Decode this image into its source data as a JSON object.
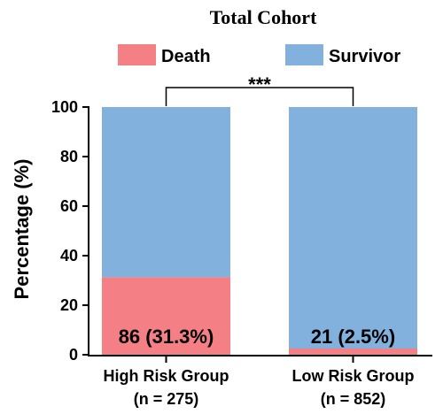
{
  "chart_data": {
    "type": "bar",
    "stacked": true,
    "title": "Total Cohort",
    "ylabel": "Percentage (%)",
    "xlabel": "",
    "ylim": [
      0,
      100
    ],
    "yticks": [
      0,
      20,
      40,
      60,
      80,
      100
    ],
    "legend_position": "top",
    "categories": [
      {
        "line1": "High Risk Group",
        "line2": "(n = 275)"
      },
      {
        "line1": "Low Risk Group",
        "line2": "(n = 852)"
      }
    ],
    "series": [
      {
        "name": "Death",
        "color": "#f47f84",
        "values": [
          31.3,
          2.5
        ]
      },
      {
        "name": "Survivor",
        "color": "#82b1de",
        "values": [
          68.7,
          97.5
        ]
      }
    ],
    "bar_labels": [
      "86 (31.3%)",
      "21 (2.5%)"
    ],
    "significance": "***"
  }
}
